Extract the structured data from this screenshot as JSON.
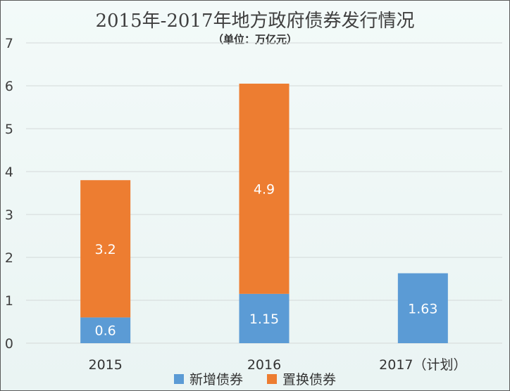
{
  "chart_data": {
    "type": "bar",
    "stacked": true,
    "title": "2015年-2017年地方政府债券发行情况",
    "subtitle": "（单位：万亿元）",
    "categories": [
      "2015",
      "2016",
      "2017（计划）"
    ],
    "series": [
      {
        "name": "新增债券",
        "color": "#5b9bd5",
        "values": [
          0.6,
          1.15,
          1.63
        ]
      },
      {
        "name": "置换债券",
        "color": "#ed7d31",
        "values": [
          3.2,
          4.9,
          0
        ]
      }
    ],
    "ylim": [
      0,
      7
    ],
    "yticks": [
      "0",
      "1",
      "2",
      "3",
      "4",
      "5",
      "6",
      "7"
    ],
    "xlabel": "",
    "ylabel": "",
    "grid": true,
    "legend_position": "bottom"
  }
}
